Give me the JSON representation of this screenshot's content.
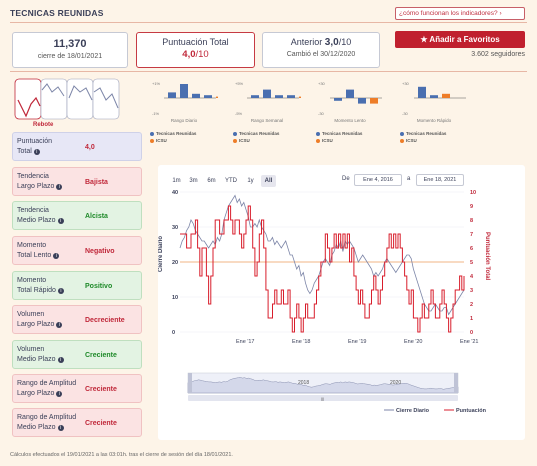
{
  "header": {
    "title": "TECNICAS REUNIDAS",
    "help_link": "¿cómo funcionan los indicadores? ›"
  },
  "stats": {
    "price": "11,370",
    "price_date": "cierre de 18/01/2021",
    "score_title": "Puntuación Total",
    "score_value": "4,0",
    "score_suffix": "/10",
    "prev_label": "Anterior",
    "prev_value": "3,0",
    "prev_suffix": "/10",
    "prev_changed": "Cambió el 30/12/2020"
  },
  "favorites": {
    "button_label": "★ Añadir a Favoritos",
    "followers": "3.602 seguidores"
  },
  "pattern": {
    "label": "Rebote"
  },
  "mini_charts": [
    {
      "label": "Rango Diario",
      "top": "+1%",
      "bottom": "-1%",
      "values": [
        0.4,
        1.0,
        0.3,
        0.2
      ],
      "icsu": [
        0.1
      ]
    },
    {
      "label": "Rango Semanal",
      "top": "+5%",
      "bottom": "-5%",
      "values": [
        0.2,
        0.6,
        0.2,
        0.2
      ],
      "icsu": [
        0.1
      ]
    },
    {
      "label": "Momento Lento",
      "top": "+30",
      "bottom": "-30",
      "values": [
        -0.2,
        0.6,
        -0.4
      ],
      "icsu": [
        -0.4
      ]
    },
    {
      "label": "Momento Rápido",
      "top": "+30",
      "bottom": "-30",
      "values": [
        0.8,
        0.2
      ],
      "icsu": [
        0.3
      ]
    }
  ],
  "mini_legend": {
    "series1": "Tecnicas Reunidas",
    "series2": "ICSU"
  },
  "indicators": [
    {
      "label1": "Puntuación",
      "label2": "Total",
      "value": "4,0",
      "style": "blue"
    },
    {
      "label1": "Tendencia",
      "label2": "Largo Plazo",
      "value": "Bajista",
      "style": "red"
    },
    {
      "label1": "Tendencia",
      "label2": "Medio Plazo",
      "value": "Alcista",
      "style": "green"
    },
    {
      "label1": "Momento",
      "label2": "Total Lento",
      "value": "Negativo",
      "style": "red"
    },
    {
      "label1": "Momento",
      "label2": "Total Rápido",
      "value": "Positivo",
      "style": "green"
    },
    {
      "label1": "Volumen",
      "label2": "Largo Plazo",
      "value": "Decreciente",
      "style": "red"
    },
    {
      "label1": "Volumen",
      "label2": "Medio Plazo",
      "value": "Creciente",
      "style": "green"
    },
    {
      "label1": "Rango de Amplitud",
      "label2": "Largo Plazo",
      "value": "Creciente",
      "style": "red"
    },
    {
      "label1": "Rango de Amplitud",
      "label2": "Medio Plazo",
      "value": "Creciente",
      "style": "red"
    }
  ],
  "chart_controls": {
    "ranges": [
      "1m",
      "3m",
      "6m",
      "YTD",
      "1y",
      "All"
    ],
    "active_range": "All",
    "from_label": "De",
    "from_date": "Ene 4, 2016",
    "to_label": "a",
    "to_date": "Ene 18, 2021"
  },
  "navigator": {
    "labels": [
      "2018",
      "2020"
    ],
    "center": "|||"
  },
  "footer": "Cálculos efectuados el 19/01/2021 a las 03:01h. tras el cierre de sesión del día 18/01/2021.",
  "colors": {
    "price": "#7d86a8",
    "score": "#d81e2c",
    "bar1": "#4a6fb0",
    "bar2": "#ee7d28"
  },
  "chart_data": {
    "type": "line",
    "xlabel": "",
    "ylabel": "Cierre Diario",
    "y2label": "Puntuación Total",
    "x_ticks": [
      "Ene '17",
      "Ene '18",
      "Ene '19",
      "Ene '20",
      "Ene '21"
    ],
    "ylim": [
      0,
      40
    ],
    "y_ticks": [
      0,
      10,
      20,
      30,
      40
    ],
    "y2lim": [
      0,
      10
    ],
    "y2_ticks": [
      0,
      1,
      2,
      3,
      4,
      5,
      6,
      7,
      8,
      9,
      10
    ],
    "reference_line_y2": 5,
    "series": [
      {
        "name": "Cierre Diario",
        "axis": "left",
        "values": [
          24,
          26,
          27,
          29,
          30,
          32,
          31,
          29,
          28,
          27,
          26,
          26,
          25,
          24,
          25,
          26,
          25,
          27,
          26,
          28,
          32,
          34,
          36,
          37,
          38,
          39,
          37,
          38,
          36,
          37,
          35,
          33,
          30,
          30,
          31,
          30,
          32,
          30,
          29,
          28,
          26,
          26,
          27,
          25,
          26,
          25,
          24,
          25,
          26,
          24,
          22,
          22,
          20,
          18,
          19,
          16,
          17,
          14,
          12,
          11,
          12,
          14,
          15,
          16,
          18,
          20,
          21,
          20,
          19,
          22,
          23,
          25,
          24,
          26,
          23,
          26,
          25,
          26,
          25,
          24,
          22,
          20,
          21,
          22,
          21,
          20,
          19,
          18,
          16,
          17,
          16,
          17,
          18,
          20,
          21,
          20,
          19,
          18,
          17,
          18,
          19,
          20,
          21,
          22,
          22,
          21,
          18,
          16,
          14,
          12,
          10,
          8,
          7,
          6,
          6,
          7,
          8,
          7,
          6,
          6,
          7,
          7,
          5,
          6,
          7,
          8,
          9,
          10,
          11,
          12
        ]
      },
      {
        "name": "Puntuación",
        "axis": "right",
        "values": [
          7,
          7,
          7,
          6,
          6,
          7,
          7,
          8,
          6,
          4,
          6,
          6,
          4,
          2,
          4,
          6,
          8,
          8,
          7,
          7,
          8,
          8,
          9,
          8,
          7,
          8,
          8,
          7,
          6,
          7,
          8,
          9,
          8,
          6,
          4,
          5,
          7,
          8,
          6,
          3,
          1,
          1,
          2,
          3,
          2,
          2,
          3,
          2,
          2,
          3,
          1,
          0,
          1,
          2,
          1,
          0,
          1,
          2,
          1,
          1,
          1,
          2,
          3,
          4,
          5,
          5,
          7,
          6,
          5,
          6,
          7,
          6,
          7,
          6,
          7,
          6,
          7,
          5,
          6,
          4,
          3,
          2,
          3,
          2,
          1,
          1,
          2,
          3,
          4,
          3,
          2,
          3,
          4,
          5,
          6,
          7,
          6,
          7,
          6,
          7,
          6,
          5,
          4,
          3,
          2,
          3,
          1,
          1,
          0,
          1,
          2,
          1,
          1,
          2,
          3,
          2,
          1,
          1,
          2,
          3,
          2,
          1,
          0,
          1,
          2,
          3,
          3,
          4,
          3,
          4
        ]
      }
    ],
    "legend": [
      "Cierre Diario",
      "Puntuación"
    ]
  }
}
